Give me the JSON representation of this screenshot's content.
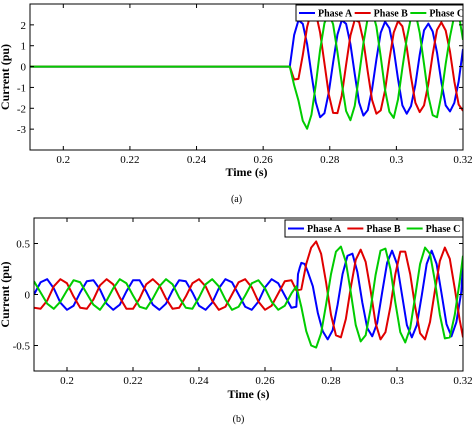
{
  "chart_data": [
    {
      "type": "line",
      "panel_label": "(a)",
      "xlabel": "Time (s)",
      "ylabel": "Current (pu)",
      "xlim": [
        0.19,
        0.32
      ],
      "ylim": [
        -4,
        3
      ],
      "xticks": [
        0.2,
        0.22,
        0.24,
        0.26,
        0.28,
        0.3,
        0.32
      ],
      "xtick_labels": [
        "0.2",
        "0.22",
        "0.24",
        "0.26",
        "0.28",
        "0.3",
        "0.32"
      ],
      "yticks": [
        -3,
        -2,
        -1,
        0,
        1,
        2
      ],
      "ytick_labels": [
        "-3",
        "-2",
        "-1",
        "0",
        "1",
        "2"
      ],
      "legend_position": "top-right",
      "series": [
        {
          "name": "Phase A",
          "color": "#0000ff",
          "x": [
            0.19,
            0.268,
            0.2693,
            0.2706,
            0.2719,
            0.2732,
            0.2745,
            0.2758,
            0.2771,
            0.2784,
            0.2797,
            0.281,
            0.2823,
            0.2836,
            0.2849,
            0.2862,
            0.2875,
            0.2888,
            0.2901,
            0.2914,
            0.2927,
            0.294,
            0.2953,
            0.2966,
            0.2979,
            0.2992,
            0.3005,
            0.3018,
            0.3031,
            0.3044,
            0.3057,
            0.307,
            0.3083,
            0.3096,
            0.3109,
            0.3122,
            0.3135,
            0.3148,
            0.3161,
            0.3174,
            0.3187,
            0.32
          ],
          "y": [
            0,
            0,
            1.51,
            2.22,
            2.05,
            1.08,
            -0.36,
            -1.71,
            -2.43,
            -2.24,
            -1.24,
            0.19,
            1.53,
            2.22,
            2.05,
            1.08,
            -0.36,
            -1.72,
            -2.35,
            -2.09,
            -1.09,
            0.34,
            1.63,
            2.15,
            1.84,
            0.83,
            -0.61,
            -1.86,
            -2.26,
            -1.89,
            -0.87,
            0.56,
            1.74,
            2.06,
            1.68,
            0.67,
            -0.74,
            -1.86,
            -2.15,
            -1.74,
            -0.71,
            0.84
          ]
        },
        {
          "name": "Phase B",
          "color": "#e00000",
          "x": [
            0.19,
            0.268,
            0.2693,
            0.2706,
            0.2719,
            0.2732,
            0.2745,
            0.2758,
            0.2771,
            0.2784,
            0.2797,
            0.281,
            0.2823,
            0.2836,
            0.2849,
            0.2862,
            0.2875,
            0.2888,
            0.2901,
            0.2914,
            0.2927,
            0.294,
            0.2953,
            0.2966,
            0.2979,
            0.2992,
            0.3005,
            0.3018,
            0.3031,
            0.3044,
            0.3057,
            0.307,
            0.3083,
            0.3096,
            0.3109,
            0.3122,
            0.3135,
            0.3148,
            0.3161,
            0.3174,
            0.3187,
            0.32
          ],
          "y": [
            0,
            0,
            -0.62,
            -0.59,
            0.55,
            1.9,
            2.67,
            2.58,
            1.63,
            0.16,
            -1.33,
            -2.22,
            -2.23,
            -1.39,
            0.08,
            1.49,
            2.24,
            2.14,
            1.23,
            -0.24,
            -1.6,
            -2.26,
            -2.1,
            -1.14,
            0.34,
            1.63,
            2.18,
            1.93,
            0.93,
            -0.51,
            -1.73,
            -2.18,
            -1.86,
            -0.83,
            0.59,
            1.76,
            2.12,
            1.73,
            0.71,
            -0.71,
            -1.82,
            -2.12
          ]
        },
        {
          "name": "Phase C",
          "color": "#00cc00",
          "x": [
            0.19,
            0.268,
            0.2693,
            0.2706,
            0.2719,
            0.2732,
            0.2745,
            0.2758,
            0.2771,
            0.2784,
            0.2797,
            0.281,
            0.2823,
            0.2836,
            0.2849,
            0.2862,
            0.2875,
            0.2888,
            0.2901,
            0.2914,
            0.2927,
            0.294,
            0.2953,
            0.2966,
            0.2979,
            0.2992,
            0.3005,
            0.3018,
            0.3031,
            0.3044,
            0.3057,
            0.307,
            0.3083,
            0.3096,
            0.3109,
            0.3122,
            0.3135,
            0.3148,
            0.3161,
            0.3174,
            0.3187,
            0.32
          ],
          "y": [
            0,
            0,
            -0.89,
            -1.63,
            -2.6,
            -2.98,
            -2.31,
            -0.87,
            0.8,
            2.08,
            2.57,
            2.03,
            0.7,
            -0.8,
            -2.13,
            -2.57,
            -1.88,
            -0.42,
            1.12,
            2.33,
            2.69,
            1.92,
            0.47,
            -1.12,
            -2.17,
            -2.46,
            -1.57,
            -0.07,
            1.33,
            2.37,
            2.61,
            1.62,
            0.12,
            -1.42,
            -2.33,
            -2.43,
            -1.38,
            0.13,
            1.44,
            2.45,
            2.53,
            1.28
          ]
        }
      ]
    },
    {
      "type": "line",
      "panel_label": "(b)",
      "xlabel": "Time (s)",
      "ylabel": "Current (pu)",
      "xlim": [
        0.19,
        0.32
      ],
      "ylim": [
        -0.75,
        0.75
      ],
      "xticks": [
        0.2,
        0.22,
        0.24,
        0.26,
        0.28,
        0.3,
        0.32
      ],
      "xtick_labels": [
        "0.2",
        "0.22",
        "0.24",
        "0.26",
        "0.28",
        "0.3",
        "0.32"
      ],
      "yticks": [
        -0.5,
        0,
        0.5
      ],
      "ytick_labels": [
        "-0.5",
        "0",
        "0.5"
      ],
      "legend_position": "top-right",
      "series": [
        {
          "name": "Phase A",
          "color": "#0000ff",
          "x": [
            0.19,
            0.192,
            0.194,
            0.196,
            0.198,
            0.2,
            0.202,
            0.204,
            0.206,
            0.208,
            0.21,
            0.212,
            0.214,
            0.216,
            0.218,
            0.22,
            0.222,
            0.224,
            0.226,
            0.228,
            0.23,
            0.232,
            0.234,
            0.236,
            0.238,
            0.24,
            0.242,
            0.244,
            0.246,
            0.248,
            0.25,
            0.252,
            0.254,
            0.256,
            0.258,
            0.26,
            0.262,
            0.264,
            0.266,
            0.268,
            0.2695,
            0.27,
            0.2705,
            0.271,
            0.272,
            0.273,
            0.2745,
            0.276,
            0.2775,
            0.279,
            0.2805,
            0.282,
            0.2835,
            0.285,
            0.2865,
            0.288,
            0.2895,
            0.291,
            0.2925,
            0.294,
            0.2955,
            0.297,
            0.2985,
            0.3,
            0.3015,
            0.303,
            0.3045,
            0.306,
            0.3075,
            0.309,
            0.3105,
            0.312,
            0.3135,
            0.315,
            0.3165,
            0.318,
            0.3195,
            0.32
          ],
          "y": [
            0,
            0.12,
            0.15,
            0.06,
            -0.08,
            -0.15,
            -0.11,
            0.02,
            0.13,
            0.14,
            0.05,
            -0.09,
            -0.15,
            -0.1,
            0.03,
            0.14,
            0.14,
            0.03,
            -0.1,
            -0.15,
            -0.09,
            0.04,
            0.14,
            0.13,
            0.02,
            -0.11,
            -0.15,
            -0.08,
            0.06,
            0.15,
            0.12,
            0.0,
            -0.12,
            -0.15,
            -0.07,
            0.07,
            0.15,
            0.11,
            -0.01,
            -0.13,
            -0.12,
            0.2,
            0.26,
            0.31,
            0.3,
            0.22,
            0.08,
            -0.18,
            -0.36,
            -0.44,
            -0.35,
            -0.1,
            0.2,
            0.38,
            0.4,
            0.22,
            -0.08,
            -0.33,
            -0.41,
            -0.28,
            0.02,
            0.31,
            0.43,
            0.3,
            0.0,
            -0.3,
            -0.42,
            -0.3,
            -0.01,
            0.3,
            0.43,
            0.3,
            0.01,
            -0.29,
            -0.41,
            -0.27,
            0.03,
            0.31
          ]
        },
        {
          "name": "Phase B",
          "color": "#e00000",
          "x": [
            0.19,
            0.192,
            0.194,
            0.196,
            0.198,
            0.2,
            0.202,
            0.204,
            0.206,
            0.208,
            0.21,
            0.212,
            0.214,
            0.216,
            0.218,
            0.22,
            0.222,
            0.224,
            0.226,
            0.228,
            0.23,
            0.232,
            0.234,
            0.236,
            0.238,
            0.24,
            0.242,
            0.244,
            0.246,
            0.248,
            0.25,
            0.252,
            0.254,
            0.256,
            0.258,
            0.26,
            0.262,
            0.264,
            0.266,
            0.268,
            0.2695,
            0.271,
            0.2725,
            0.274,
            0.2755,
            0.277,
            0.2785,
            0.28,
            0.2815,
            0.283,
            0.2845,
            0.286,
            0.2875,
            0.289,
            0.2905,
            0.292,
            0.2935,
            0.295,
            0.2965,
            0.298,
            0.2995,
            0.301,
            0.3025,
            0.304,
            0.3055,
            0.307,
            0.3085,
            0.31,
            0.3115,
            0.313,
            0.3145,
            0.316,
            0.3175,
            0.319,
            0.32
          ],
          "y": [
            -0.13,
            -0.14,
            -0.06,
            0.08,
            0.15,
            0.11,
            -0.02,
            -0.13,
            -0.14,
            -0.05,
            0.09,
            0.15,
            0.1,
            -0.03,
            -0.14,
            -0.14,
            -0.04,
            0.1,
            0.15,
            0.09,
            -0.04,
            -0.14,
            -0.13,
            -0.02,
            0.11,
            0.15,
            0.08,
            -0.06,
            -0.15,
            -0.12,
            0.0,
            0.12,
            0.15,
            0.07,
            -0.07,
            -0.15,
            -0.11,
            0.01,
            0.13,
            0.14,
            0.04,
            0.05,
            0.3,
            0.46,
            0.52,
            0.4,
            0.12,
            -0.2,
            -0.4,
            -0.42,
            -0.24,
            0.07,
            0.34,
            0.44,
            0.32,
            0.04,
            -0.28,
            -0.44,
            -0.37,
            -0.12,
            0.2,
            0.42,
            0.42,
            0.2,
            -0.12,
            -0.38,
            -0.44,
            -0.27,
            0.04,
            0.33,
            0.46,
            0.35,
            0.06,
            -0.25,
            -0.42
          ]
        },
        {
          "name": "Phase C",
          "color": "#00cc00",
          "x": [
            0.19,
            0.192,
            0.194,
            0.196,
            0.198,
            0.2,
            0.202,
            0.204,
            0.206,
            0.208,
            0.21,
            0.212,
            0.214,
            0.216,
            0.218,
            0.22,
            0.222,
            0.224,
            0.226,
            0.228,
            0.23,
            0.232,
            0.234,
            0.236,
            0.238,
            0.24,
            0.242,
            0.244,
            0.246,
            0.248,
            0.25,
            0.252,
            0.254,
            0.256,
            0.258,
            0.26,
            0.262,
            0.264,
            0.266,
            0.268,
            0.2695,
            0.271,
            0.2725,
            0.274,
            0.2755,
            0.277,
            0.2785,
            0.28,
            0.2815,
            0.283,
            0.2845,
            0.286,
            0.2875,
            0.289,
            0.2905,
            0.292,
            0.2935,
            0.295,
            0.2965,
            0.298,
            0.2995,
            0.301,
            0.3025,
            0.304,
            0.3055,
            0.307,
            0.3085,
            0.31,
            0.3115,
            0.313,
            0.3145,
            0.316,
            0.3175,
            0.319,
            0.32
          ],
          "y": [
            0.13,
            0.02,
            -0.09,
            -0.14,
            -0.07,
            0.04,
            0.14,
            0.12,
            0.01,
            -0.1,
            -0.15,
            -0.06,
            0.06,
            0.15,
            0.11,
            -0.01,
            -0.12,
            -0.14,
            -0.04,
            0.08,
            0.15,
            0.1,
            -0.03,
            -0.13,
            -0.14,
            -0.03,
            0.1,
            0.15,
            0.08,
            -0.05,
            -0.15,
            -0.12,
            -0.01,
            0.11,
            0.14,
            0.06,
            -0.07,
            -0.15,
            -0.11,
            0.01,
            0.08,
            -0.12,
            -0.36,
            -0.5,
            -0.52,
            -0.38,
            -0.1,
            0.2,
            0.42,
            0.47,
            0.32,
            0.02,
            -0.3,
            -0.46,
            -0.4,
            -0.14,
            0.19,
            0.43,
            0.45,
            0.25,
            -0.08,
            -0.37,
            -0.47,
            -0.33,
            -0.02,
            0.3,
            0.46,
            0.4,
            0.13,
            -0.2,
            -0.43,
            -0.42,
            -0.2,
            0.13,
            0.38
          ]
        }
      ]
    }
  ]
}
